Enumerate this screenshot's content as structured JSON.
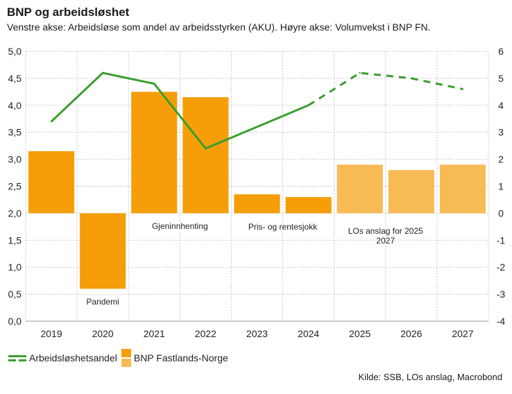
{
  "header": {
    "title": "BNP og arbeidsløshet",
    "subtitle": "Venstre akse: Arbeidsløse som andel av arbeidsstyrken (AKU).  Høyre akse: Volumvekst i BNP FN."
  },
  "legend": {
    "line_label": "Arbeidsløshetsandel",
    "bar_label": "BNP Fastlands-Norge"
  },
  "source": "Kilde: SSB, LOs anslag, Macrobond",
  "colors": {
    "line": "#3a9e2e",
    "bar_actual": "#f59e0a",
    "bar_forecast": "#f8ba55",
    "grid": "#c8c8c8"
  },
  "chart_data": {
    "type": "bar+line",
    "title": "BNP og arbeidsløshet",
    "categories": [
      "2019",
      "2020",
      "2021",
      "2022",
      "2023",
      "2024",
      "2025",
      "2026",
      "2027"
    ],
    "forecast_from": "2025",
    "left_axis": {
      "label": "Arbeidsløse som andel av arbeidsstyrken (AKU)",
      "range": [
        0,
        5
      ],
      "ticks": [
        "0,0",
        "0,5",
        "1,0",
        "1,5",
        "2,0",
        "2,5",
        "3,0",
        "3,5",
        "4,0",
        "4,5",
        "5,0"
      ],
      "tick_values": [
        0,
        0.5,
        1,
        1.5,
        2,
        2.5,
        3,
        3.5,
        4,
        4.5,
        5
      ]
    },
    "right_axis": {
      "label": "Volumvekst i BNP FN",
      "range": [
        -4,
        6
      ],
      "ticks": [
        "-4",
        "-3",
        "-2",
        "-1",
        "0",
        "1",
        "2",
        "3",
        "4",
        "5",
        "6"
      ],
      "tick_values": [
        -4,
        -3,
        -2,
        -1,
        0,
        1,
        2,
        3,
        4,
        5,
        6
      ]
    },
    "series": [
      {
        "name": "Arbeidsløshetsandel",
        "type": "line",
        "axis": "left",
        "values": [
          3.7,
          4.6,
          4.4,
          3.2,
          3.6,
          4.0,
          4.6,
          4.5,
          4.3
        ],
        "dashed_from": "2024"
      },
      {
        "name": "BNP Fastlands-Norge",
        "type": "bar",
        "axis": "right",
        "values": [
          2.3,
          -2.8,
          4.5,
          4.3,
          0.7,
          0.6,
          1.8,
          1.6,
          1.8
        ]
      }
    ],
    "annotations": [
      {
        "text": "Pandemi",
        "category": "2020"
      },
      {
        "text": "Gjeninnhenting",
        "category": "2021-2022"
      },
      {
        "text": "Pris- og rentesjokk",
        "category": "2023-2024"
      },
      {
        "text": "LOs anslag for 2025",
        "category": "2025-2027"
      },
      {
        "text": "2027",
        "category": "2025-2027"
      }
    ],
    "grid": true,
    "legend_position": "bottom-left"
  }
}
